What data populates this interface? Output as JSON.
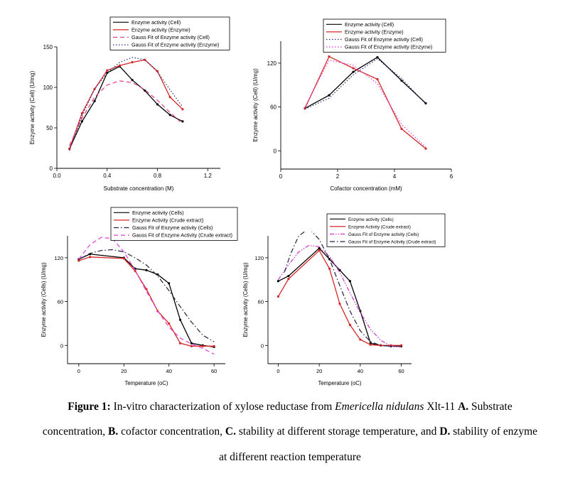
{
  "chart_data": [
    {
      "type": "line",
      "panel": "A",
      "title": "",
      "xlabel": "Substrate concentration (M)",
      "ylabel": "Enzyme activity (Cell) (U/mg)",
      "xlim": [
        0.0,
        1.3
      ],
      "ylim": [
        0,
        150
      ],
      "xticks": [
        0.0,
        0.4,
        0.8,
        1.2
      ],
      "xtick_labels": [
        "0.0",
        "0.4",
        "0.8",
        "1.2"
      ],
      "yticks": [
        0,
        50,
        100,
        150
      ],
      "ytick_labels": [
        "0",
        "50",
        "100",
        "150"
      ],
      "legend_position": "top",
      "series": [
        {
          "name": "Enzyme activity (Cell)",
          "style": "solid",
          "color": "#000000",
          "markers": true,
          "x": [
            0.1,
            0.2,
            0.3,
            0.4,
            0.5,
            0.6,
            0.7,
            0.8,
            0.9,
            1.0
          ],
          "y": [
            24,
            58,
            83,
            118,
            126,
            109,
            96,
            79,
            66,
            58
          ]
        },
        {
          "name": "Enzyme activity (Enzyme)",
          "style": "solid",
          "color": "#d62728",
          "markers": true,
          "x": [
            0.1,
            0.2,
            0.3,
            0.4,
            0.5,
            0.6,
            0.7,
            0.8,
            0.9,
            1.0
          ],
          "y": [
            24,
            68,
            98,
            121,
            127,
            131,
            134,
            120,
            88,
            73
          ]
        },
        {
          "name": "Gauss Fit of Enzyme activity (Cell)",
          "style": "dashed",
          "color": "#e23c8a",
          "markers": false,
          "x": [
            0.1,
            0.2,
            0.3,
            0.4,
            0.5,
            0.6,
            0.7,
            0.8,
            0.9,
            1.0
          ],
          "y": [
            28,
            62,
            88,
            103,
            108,
            106,
            97,
            84,
            69,
            55
          ]
        },
        {
          "name": "Gauss Fit of Enzyme activity (Enzyme)",
          "style": "dotted",
          "color": "#2b2b7a",
          "markers": false,
          "x": [
            0.1,
            0.2,
            0.3,
            0.4,
            0.5,
            0.6,
            0.7,
            0.8,
            0.9,
            1.0
          ],
          "y": [
            22,
            65,
            98,
            118,
            131,
            137,
            134,
            119,
            97,
            76
          ]
        }
      ]
    },
    {
      "type": "line",
      "panel": "B",
      "title": "",
      "xlabel": "Cofactor concentration (mM)",
      "ylabel": "Enzyme activity (Cell) (U/mg)",
      "xlim": [
        0,
        6
      ],
      "ylim": [
        -25,
        150
      ],
      "xticks": [
        0,
        2,
        4,
        6
      ],
      "xtick_labels": [
        "0",
        "2",
        "4",
        "6"
      ],
      "yticks": [
        0,
        60,
        120
      ],
      "ytick_labels": [
        "0",
        "60",
        "120"
      ],
      "legend_position": "top",
      "series": [
        {
          "name": "Enzyme activity (Cell)",
          "style": "solid",
          "color": "#000000",
          "markers": true,
          "x": [
            0.85,
            1.7,
            2.55,
            3.4,
            4.25,
            5.1
          ],
          "y": [
            58,
            76,
            108,
            128,
            96,
            65
          ]
        },
        {
          "name": "Enzyme activity (Enzyme)",
          "style": "solid",
          "color": "#d62728",
          "markers": true,
          "x": [
            0.85,
            1.7,
            2.55,
            3.4,
            4.25,
            5.1
          ],
          "y": [
            58,
            129,
            113,
            98,
            30,
            3
          ]
        },
        {
          "name": "Gauss Fit of Enzyme activity (Cell)",
          "style": "dotted",
          "color": "#2b2b7a",
          "markers": false,
          "x": [
            0.85,
            1.7,
            2.55,
            3.4,
            4.25,
            5.1
          ],
          "y": [
            57,
            72,
            104,
            126,
            99,
            64
          ]
        },
        {
          "name": "Gauss Fit of Enzyme activity (Enzyme)",
          "style": "dotted",
          "color": "#e23ce0",
          "markers": false,
          "x": [
            0.85,
            1.7,
            2.55,
            3.4,
            4.25,
            5.1
          ],
          "y": [
            60,
            124,
            117,
            92,
            36,
            5
          ]
        }
      ]
    },
    {
      "type": "line",
      "panel": "C",
      "title": "",
      "xlabel": "Temperature (oC)",
      "ylabel": "Enzyme activity (Cells) (U/mg)",
      "xlim": [
        -5,
        65
      ],
      "ylim": [
        -25,
        150
      ],
      "xticks": [
        0,
        20,
        40,
        60
      ],
      "xtick_labels": [
        "0",
        "20",
        "40",
        "60"
      ],
      "yticks": [
        0,
        60,
        120
      ],
      "ytick_labels": [
        "0",
        "60",
        "120"
      ],
      "legend_position": "top",
      "series": [
        {
          "name": "Enzyme activity (Cells)",
          "style": "solid",
          "color": "#000000",
          "markers": true,
          "x": [
            0,
            5,
            20,
            25,
            30,
            35,
            40,
            45,
            50,
            55,
            60
          ],
          "y": [
            118,
            125,
            120,
            105,
            103,
            97,
            85,
            35,
            3,
            0,
            -2
          ]
        },
        {
          "name": "Enzyme Activity (Crude extract)",
          "style": "solid",
          "color": "#d62728",
          "markers": true,
          "x": [
            0,
            5,
            20,
            25,
            30,
            35,
            40,
            45,
            50,
            55,
            60
          ],
          "y": [
            116,
            121,
            119,
            102,
            77,
            47,
            30,
            3,
            -1,
            -1,
            -1
          ]
        },
        {
          "name": "Gauss Fit of Enzyme activity (Cells)",
          "style": "dashdot",
          "color": "#222244",
          "markers": false,
          "x": [
            0,
            5,
            10,
            15,
            20,
            25,
            30,
            35,
            40,
            45,
            50,
            55,
            60
          ],
          "y": [
            118,
            126,
            130,
            131,
            128,
            120,
            110,
            95,
            75,
            53,
            32,
            14,
            5
          ]
        },
        {
          "name": "Gauss Fit of Enzyme Activity (Crude extract)",
          "style": "dashed",
          "color": "#e23ce0",
          "markers": false,
          "x": [
            0,
            5,
            10,
            15,
            20,
            25,
            30,
            35,
            40,
            45,
            50,
            55,
            60
          ],
          "y": [
            118,
            138,
            148,
            146,
            128,
            103,
            74,
            47,
            25,
            10,
            2,
            -4,
            -12
          ]
        }
      ]
    },
    {
      "type": "line",
      "panel": "D",
      "title": "",
      "xlabel": "Temperature (oC)",
      "ylabel": "Enzyme activity (Cells) (U/mg)",
      "xlim": [
        -5,
        65
      ],
      "ylim": [
        -25,
        150
      ],
      "xticks": [
        0,
        20,
        40,
        60
      ],
      "xtick_labels": [
        "0",
        "20",
        "40",
        "60"
      ],
      "yticks": [
        0,
        60,
        120
      ],
      "ytick_labels": [
        "0",
        "60",
        "120"
      ],
      "legend_position": "top",
      "series": [
        {
          "name": "Enzyme activity (Cells)",
          "style": "solid",
          "color": "#000000",
          "markers": true,
          "x": [
            0,
            5,
            20,
            25,
            30,
            35,
            40,
            45,
            50,
            55,
            60
          ],
          "y": [
            88,
            95,
            133,
            118,
            103,
            88,
            47,
            3,
            0,
            -1,
            -1
          ]
        },
        {
          "name": "Enzyme Activity (Crude extract)",
          "style": "solid",
          "color": "#d62728",
          "markers": true,
          "x": [
            0,
            5,
            20,
            25,
            30,
            35,
            40,
            45,
            50,
            55,
            60
          ],
          "y": [
            67,
            91,
            130,
            105,
            57,
            28,
            8,
            1,
            0,
            0,
            0
          ]
        },
        {
          "name": "Gauss Fit of Enzyme activity (Cells)",
          "style": "dashdotdot",
          "color": "#cc33cc",
          "markers": false,
          "x": [
            0,
            5,
            10,
            15,
            20,
            25,
            30,
            35,
            40,
            45,
            50,
            55,
            60
          ],
          "y": [
            90,
            110,
            128,
            137,
            135,
            122,
            100,
            72,
            45,
            22,
            7,
            -1,
            -3
          ]
        },
        {
          "name": "Gauss Fit of Enzyme Activity (Crude extract)",
          "style": "dashdot",
          "color": "#222244",
          "markers": false,
          "x": [
            3,
            6,
            10,
            15,
            20,
            25,
            30,
            35,
            40,
            45,
            50,
            55,
            60
          ],
          "y": [
            100,
            125,
            150,
            160,
            145,
            118,
            82,
            47,
            20,
            5,
            0,
            -1,
            -1
          ]
        }
      ]
    }
  ],
  "caption": {
    "line1_bold": "Figure 1:",
    "line1_text": " In-vitro characterization of xylose reductase from ",
    "line1_italic": "Emericella nidulans",
    "line1_text2": " Xlt-11 ",
    "line1_bold2": "A.",
    "line1_text3": " Substrate",
    "line2_text": "concentration, ",
    "line2_bold": "B.",
    "line2_text2": " cofactor concentration, ",
    "line2_bold2": "C.",
    "line2_text3": " stability at different storage temperature, and ",
    "line2_bold3": "D.",
    "line2_text4": " stability of enzyme",
    "line3_text": "at different reaction temperature"
  }
}
